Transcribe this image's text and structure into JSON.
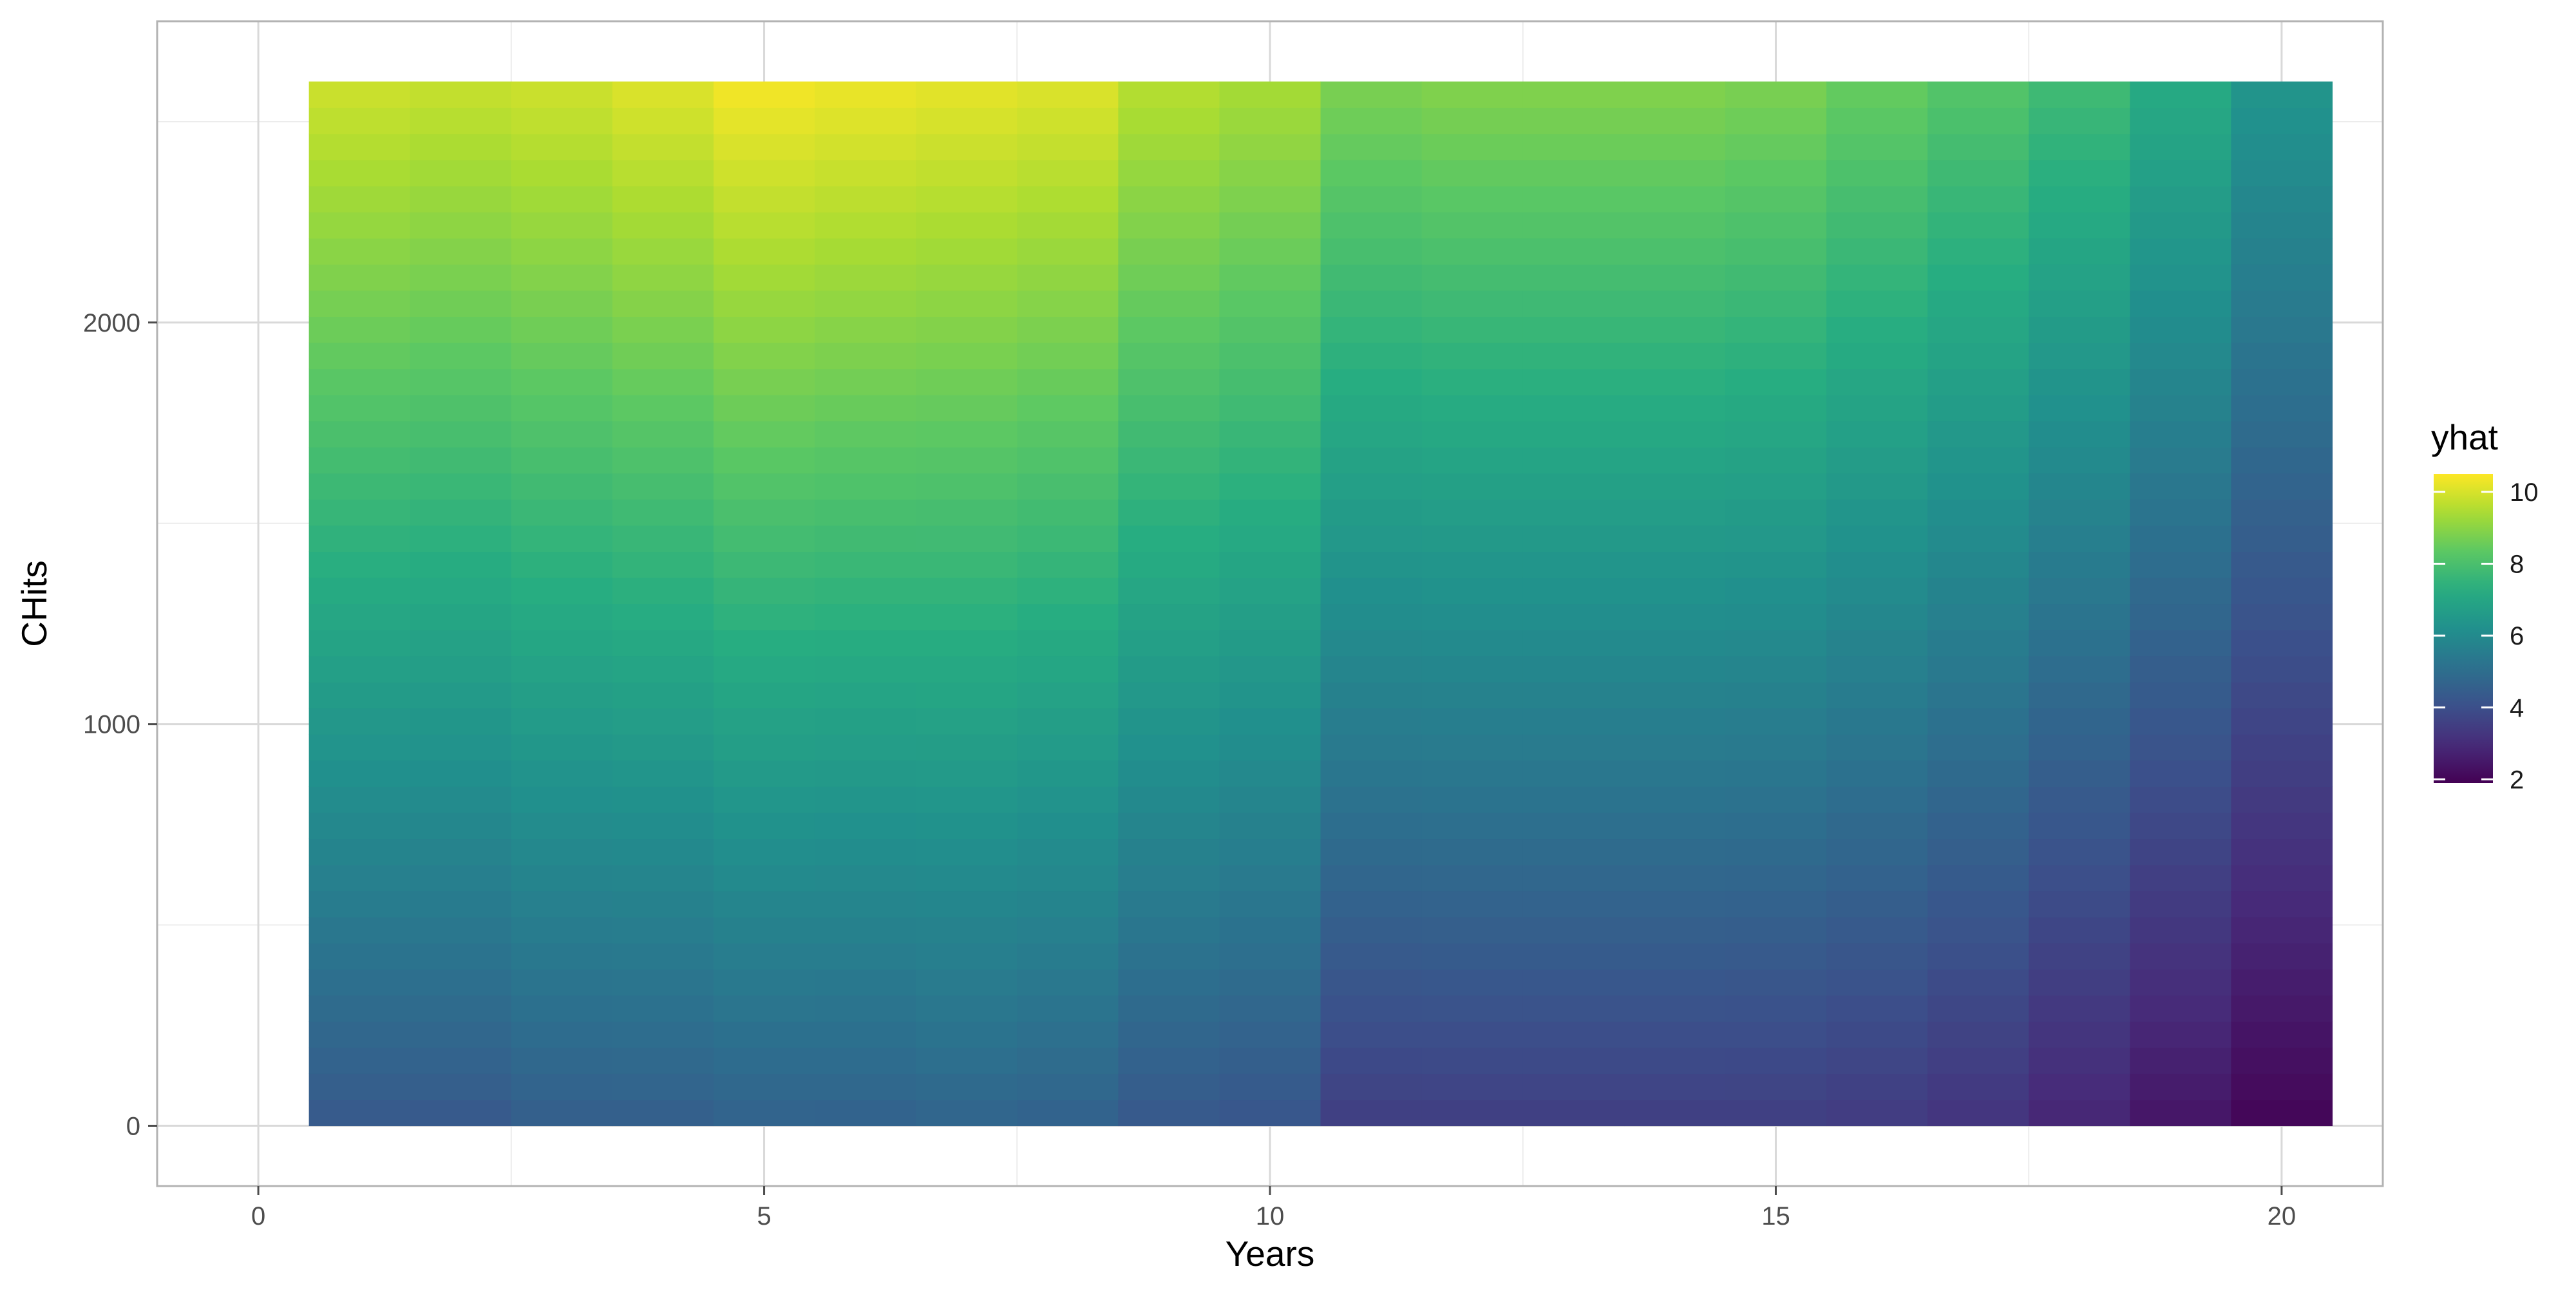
{
  "chart_data": {
    "type": "heatmap",
    "title": "",
    "xlabel": "Years",
    "ylabel": "CHits",
    "xlim": [
      -1,
      21
    ],
    "ylim": [
      -150,
      2750
    ],
    "x_ticks": [
      0,
      5,
      10,
      15,
      20
    ],
    "y_ticks": [
      0,
      1000,
      2000
    ],
    "grid": true,
    "x": [
      1,
      2,
      3,
      4,
      5,
      6,
      7,
      8,
      9,
      10,
      11,
      12,
      13,
      14,
      15,
      16,
      17,
      18,
      19,
      20
    ],
    "y_range": [
      0,
      2600
    ],
    "y_cells": 40,
    "z_model": {
      "description": "yhat by column: value at CHits=0 (bottom) and CHits=2600 (top)",
      "bottom": [
        4.3,
        4.3,
        4.5,
        4.5,
        4.6,
        4.6,
        4.7,
        4.6,
        4.3,
        4.2,
        3.5,
        3.5,
        3.5,
        3.5,
        3.5,
        3.4,
        3.2,
        2.8,
        2.4,
        2.0
      ],
      "top": [
        9.9,
        9.8,
        9.9,
        10.1,
        10.4,
        10.3,
        10.2,
        10.1,
        9.6,
        9.4,
        8.8,
        8.9,
        8.9,
        8.9,
        8.8,
        8.5,
        8.2,
        7.8,
        7.2,
        6.4
      ]
    },
    "legend": {
      "title": "yhat",
      "position": "right",
      "breaks": [
        2,
        4,
        6,
        8,
        10
      ],
      "limits": [
        1.9,
        10.5
      ]
    },
    "colormap": "viridis",
    "colors": {
      "panel_border": "#b3b3b3",
      "grid_major": "#d9d9d9",
      "grid_minor": "#ececec"
    }
  }
}
